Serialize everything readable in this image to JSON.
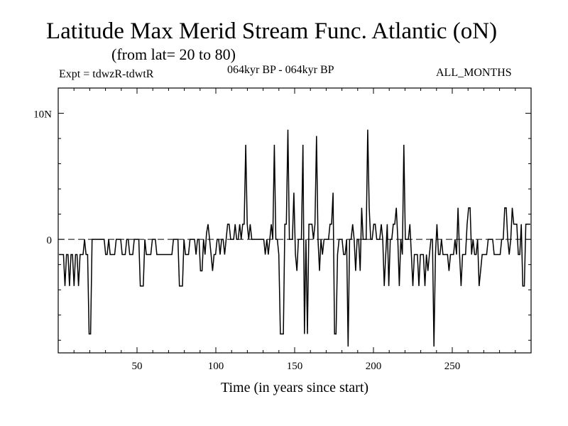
{
  "header": {
    "title": "Latitude Max Merid Stream Func. Atlantic (oN)",
    "subtitle": "(from lat= 20 to 80)",
    "expt": "Expt = tdwzR-tdwtR",
    "period": "064kyr BP - 064kyr BP",
    "months": "ALL_MONTHS"
  },
  "chart_data": {
    "type": "line",
    "xlabel": "Time (in years since start)",
    "ylabel": "",
    "xlim": [
      0,
      300
    ],
    "ylim": [
      -9,
      12
    ],
    "x_ticks": [
      50,
      100,
      150,
      200,
      250
    ],
    "y_tick_labels": [
      {
        "value": 10,
        "label": "10N"
      },
      {
        "value": 0,
        "label": "0"
      }
    ],
    "zero_line": "dashed",
    "grid": false,
    "series": [
      {
        "values": [
          -1.2,
          -1.2,
          -1.2,
          -1.2,
          -3.7,
          -1.2,
          -1.2,
          -3.7,
          -1.2,
          -1.2,
          -3.7,
          -1.2,
          -1.2,
          -3.7,
          -1.2,
          -1.2,
          -1.2,
          0,
          -1.2,
          -1.2,
          -7.5,
          -7.5,
          0,
          0,
          0,
          0,
          0,
          0,
          0,
          0,
          0,
          -1.2,
          -1.2,
          0,
          -1.2,
          -1.2,
          -1.2,
          -1.2,
          0,
          0,
          0,
          0,
          -1.2,
          -1.2,
          -1.2,
          0,
          0,
          -1.2,
          -1.2,
          -1.2,
          0,
          0,
          0,
          0,
          -3.7,
          -3.7,
          -3.7,
          0,
          -1.2,
          -1.2,
          -1.2,
          -1.2,
          0,
          0,
          0,
          -1.2,
          -1.2,
          -1.2,
          -1.2,
          -1.2,
          -1.2,
          -1.2,
          -1.2,
          -1.2,
          -1.2,
          -1.2,
          0,
          0,
          0,
          0,
          -3.7,
          -3.7,
          -3.7,
          0,
          -1.2,
          -1.2,
          -1.2,
          0,
          0,
          0,
          0,
          -1.2,
          0,
          0,
          -2.5,
          -2.5,
          0,
          -1.2,
          0.5,
          1.2,
          0,
          -1.2,
          -2.5,
          -1.2,
          -1.2,
          0,
          0,
          -1.2,
          0,
          0,
          -1.2,
          0,
          1.2,
          1.2,
          0,
          0,
          0,
          1.2,
          0,
          0,
          1.2,
          0,
          1.2,
          1.2,
          7.5,
          1.2,
          0,
          1.2,
          0,
          0,
          0,
          0,
          0,
          0,
          0,
          0,
          0,
          -1.2,
          0,
          -1.2,
          0,
          1.2,
          0,
          7.5,
          0,
          0,
          -1.2,
          -7.5,
          -7.5,
          -7.5,
          1.2,
          1.2,
          8.7,
          0,
          0,
          0,
          3.7,
          -1.2,
          -2.5,
          0,
          0,
          0,
          7.5,
          -7.5,
          0,
          -7.5,
          1.2,
          1.2,
          1.2,
          0,
          1.2,
          8.2,
          0,
          -2.5,
          0,
          -1.2,
          0,
          0,
          0,
          0,
          1.2,
          1.2,
          3.7,
          -7.5,
          -7.5,
          -1.2,
          0,
          0,
          0,
          -1.2,
          -1.2,
          0,
          -8.5,
          0,
          0,
          1.2,
          0,
          -2.5,
          0,
          0,
          -2.5,
          2.5,
          0,
          0,
          0,
          8.7,
          2.5,
          0,
          0,
          1.2,
          1.2,
          0,
          0,
          0,
          1.2,
          0,
          -3.7,
          -1.2,
          1.2,
          -3.7,
          0,
          0,
          1.2,
          1.2,
          2.5,
          0,
          -3.7,
          0,
          -1.2,
          7.5,
          0,
          0,
          0,
          1.2,
          -1.2,
          -3.7,
          -1.2,
          -1.2,
          -1.2,
          -3.7,
          -1.2,
          -1.2,
          -1.2,
          -3.7,
          -1.2,
          -2.5,
          -1.2,
          0,
          0,
          -8.5,
          -1.2,
          1.2,
          -1.2,
          -1.2,
          0,
          -1.2,
          -1.2,
          -1.2,
          -1.2,
          -2.5,
          -1.2,
          -1.2,
          -1.2,
          0,
          -1.2,
          2.5,
          -1.2,
          -3.7,
          -1.2,
          -1.2,
          -1.2,
          1.2,
          2.5,
          2.5,
          -1.2,
          0,
          -1.2,
          -1.2,
          0,
          -3.7,
          -2.5,
          -1.2,
          -1.2,
          -1.2,
          -1.2,
          0,
          0,
          0,
          0,
          -1.2,
          -1.2,
          -1.2,
          -1.2,
          -1.2,
          0,
          0,
          2.5,
          2.5,
          0,
          -1.2,
          0,
          2.5,
          1.2,
          1.2,
          1.2,
          -1.2,
          -1.2,
          1.2,
          -3.7,
          -3.7,
          1.2,
          1.2,
          1.2,
          1.2
        ]
      }
    ]
  }
}
